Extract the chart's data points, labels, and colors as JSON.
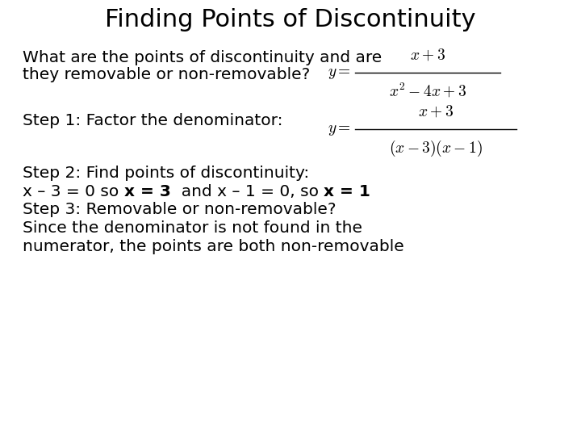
{
  "title": "Finding Points of Discontinuity",
  "title_fontsize": 22,
  "bg_color": "#ffffff",
  "text_color": "#000000",
  "body_fontsize": 14.5,
  "line1": "What are the points of discontinuity and are",
  "line2": "they removable or non-removable?",
  "step1_label": "Step 1: Factor the denominator:",
  "step2_line1": "Step 2: Find points of discontinuity:",
  "step3_line1": "Step 3: Removable or non-removable?",
  "step3_line2": "Since the denominator is not found in the",
  "step3_line3": "numerator, the points are both non-removable",
  "eq_fontsize": 13
}
